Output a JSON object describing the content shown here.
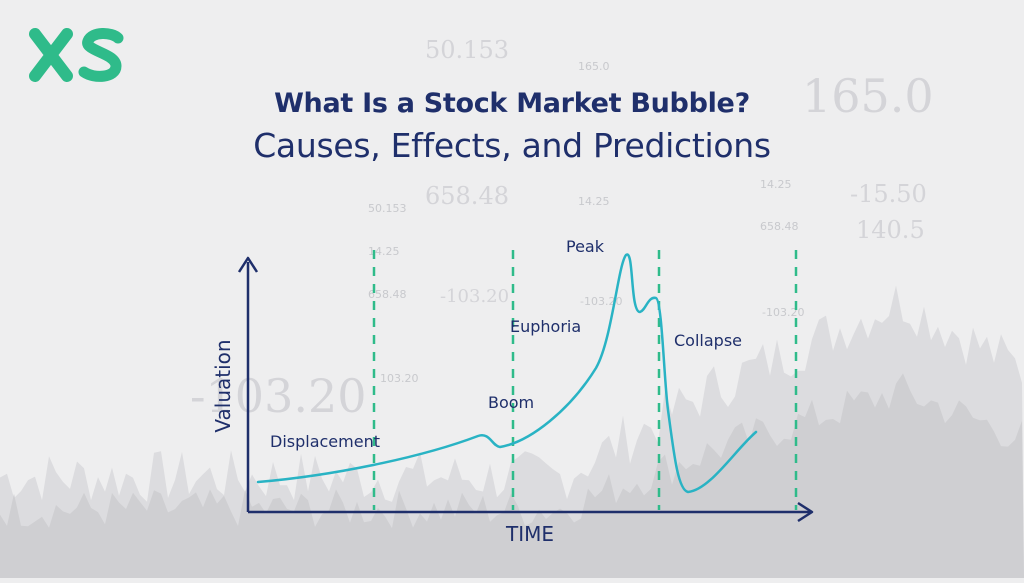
{
  "brand": {
    "logo_text": "XS",
    "accent": "#2fbb8a"
  },
  "title": {
    "line1": "What Is a Stock Market Bubble?",
    "line2": "Causes, Effects, and Predictions",
    "color": "#1f2f6b"
  },
  "diagram": {
    "y_axis_label": "Valuation",
    "x_axis_label": "TIME",
    "phases": [
      {
        "key": "displacement",
        "label": "Displacement"
      },
      {
        "key": "boom",
        "label": "Boom"
      },
      {
        "key": "euphoria",
        "label": "Euphoria"
      },
      {
        "key": "peak",
        "label": "Peak"
      },
      {
        "key": "collapse",
        "label": "Collapse"
      }
    ],
    "colors": {
      "axis": "#1f2f6b",
      "curve": "#29b3c4",
      "divider": "#2fbb8a"
    }
  },
  "background_numbers": [
    "50.153",
    "165.0",
    "165.0",
    "658.48",
    "14.25",
    "-15.50",
    "50.153",
    "14.25",
    "658.48",
    "140.5",
    "14.25",
    "658.48",
    "-103.20",
    "-103.20",
    "-103.20",
    "103.20",
    "50.153"
  ]
}
